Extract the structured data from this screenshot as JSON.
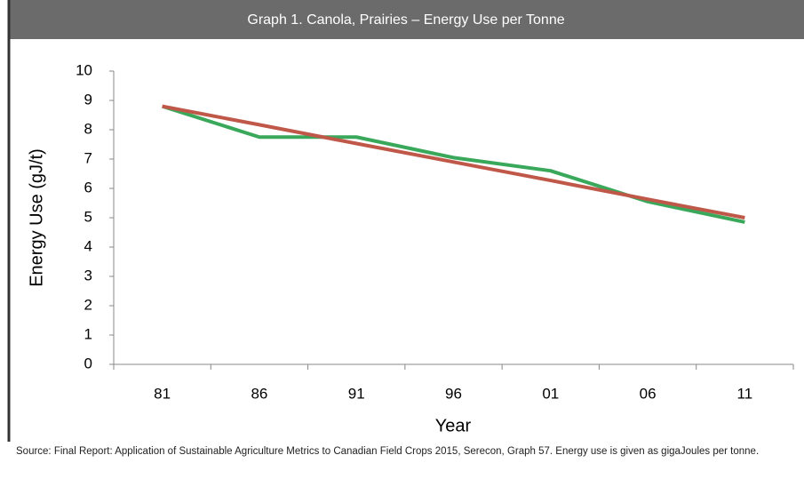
{
  "chart_data": {
    "type": "line",
    "title": "Graph 1. Canola, Prairies – Energy Use per Tonne",
    "xlabel": "Year",
    "ylabel": "Energy Use (gJ/t)",
    "source": "Source: Final Report: Application of Sustainable Agriculture Metrics to Canadian Field Crops 2015, Serecon, Graph 57. Energy use is given as gigaJoules per tonne.",
    "categories": [
      "81",
      "86",
      "91",
      "96",
      "01",
      "06",
      "11"
    ],
    "series": [
      {
        "color": "#3aa85a",
        "values": [
          8.8,
          7.75,
          7.75,
          7.05,
          6.6,
          5.55,
          4.85
        ]
      },
      {
        "color": "#c0584a",
        "values": [
          8.8,
          8.17,
          7.53,
          6.9,
          6.27,
          5.63,
          5.0
        ]
      }
    ],
    "ylim": [
      0,
      10
    ],
    "yticks": [
      0,
      1,
      2,
      3,
      4,
      5,
      6,
      7,
      8,
      9,
      10
    ],
    "grid": false
  }
}
